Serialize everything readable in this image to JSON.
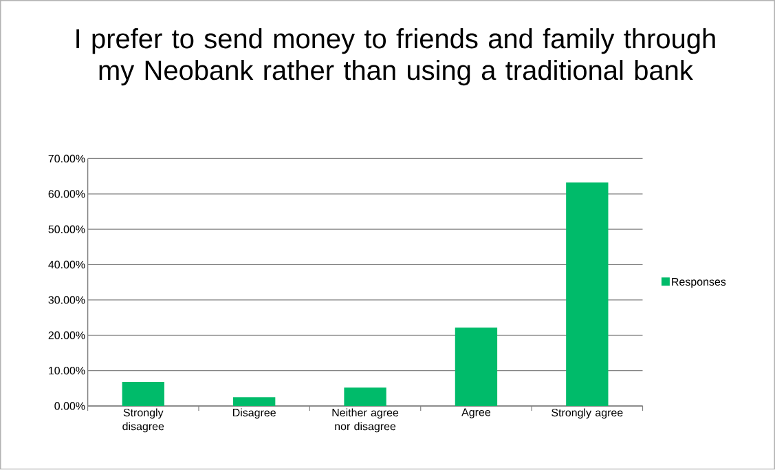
{
  "chart_data": {
    "type": "bar",
    "title": "I prefer to send money to friends and family through my Neobank rather than using a traditional bank",
    "categories": [
      "Strongly disagree",
      "Disagree",
      "Neither agree nor disagree",
      "Agree",
      "Strongly agree"
    ],
    "series": [
      {
        "name": "Responses",
        "color": "#00bb6a",
        "values": [
          6.8,
          2.5,
          5.2,
          22.2,
          63.2
        ]
      }
    ],
    "ylim": [
      0,
      70
    ],
    "yticks": [
      {
        "value": 0,
        "label": "0.00%"
      },
      {
        "value": 10,
        "label": "10.00%"
      },
      {
        "value": 20,
        "label": "20.00%"
      },
      {
        "value": 30,
        "label": "30.00%"
      },
      {
        "value": 40,
        "label": "40.00%"
      },
      {
        "value": 50,
        "label": "50.00%"
      },
      {
        "value": 60,
        "label": "60.00%"
      },
      {
        "value": 70,
        "label": "70.00%"
      }
    ],
    "grid": "y",
    "legend": "right"
  }
}
